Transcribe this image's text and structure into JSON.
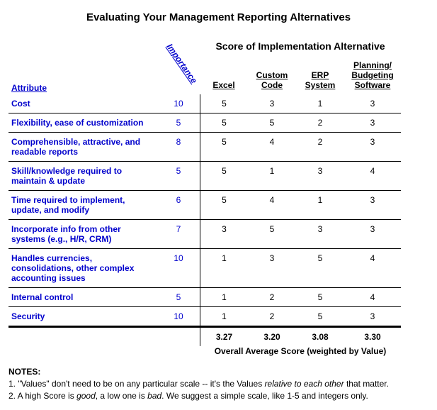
{
  "title": "Evaluating Your Management Reporting Alternatives",
  "section_header": "Score of Implementation Alternative",
  "importance_label": "Importance",
  "attribute_header": "Attribute",
  "columns": [
    "Excel",
    "Custom Code",
    "ERP System",
    "Planning/ Budgeting Software"
  ],
  "rows": [
    {
      "attr": "Cost",
      "imp": 10,
      "vals": [
        5,
        3,
        1,
        3
      ]
    },
    {
      "attr": "Flexibility, ease of customization",
      "imp": 5,
      "vals": [
        5,
        5,
        2,
        3
      ]
    },
    {
      "attr": "Comprehensible, attractive, and readable reports",
      "imp": 8,
      "vals": [
        5,
        4,
        2,
        3
      ]
    },
    {
      "attr": "Skill/knowledge required to maintain & update",
      "imp": 5,
      "vals": [
        5,
        1,
        3,
        4
      ]
    },
    {
      "attr": "Time required to implement, update, and modify",
      "imp": 6,
      "vals": [
        5,
        4,
        1,
        3
      ]
    },
    {
      "attr": "Incorporate info from other systems (e.g., H/R, CRM)",
      "imp": 7,
      "vals": [
        3,
        5,
        3,
        3
      ]
    },
    {
      "attr": "Handles currencies, consolidations, other complex accounting issues",
      "imp": 10,
      "vals": [
        1,
        3,
        5,
        4
      ]
    },
    {
      "attr": "Internal control",
      "imp": 5,
      "vals": [
        1,
        2,
        5,
        4
      ]
    },
    {
      "attr": "Security",
      "imp": 10,
      "vals": [
        1,
        2,
        5,
        3
      ]
    }
  ],
  "averages": [
    "3.27",
    "3.20",
    "3.08",
    "3.30"
  ],
  "average_label": "Overall Average Score (weighted by Value)",
  "notes_header": "NOTES:",
  "note1_a": "1. \"Values\" don't need to be on any particular scale -- it's the Values ",
  "note1_b": "relative to each other",
  "note1_c": " that matter.",
  "note2_a": "2.  A high Score is ",
  "note2_b": "good",
  "note2_c": ", a low one is ",
  "note2_d": "bad",
  "note2_e": ".  We suggest a simple scale, like 1-5 and integers only.",
  "style": {
    "link_color": "#0000cc",
    "text_color": "#000000",
    "background": "#ffffff",
    "title_fontsize": 15,
    "body_fontsize": 12,
    "border_color": "#000000"
  }
}
